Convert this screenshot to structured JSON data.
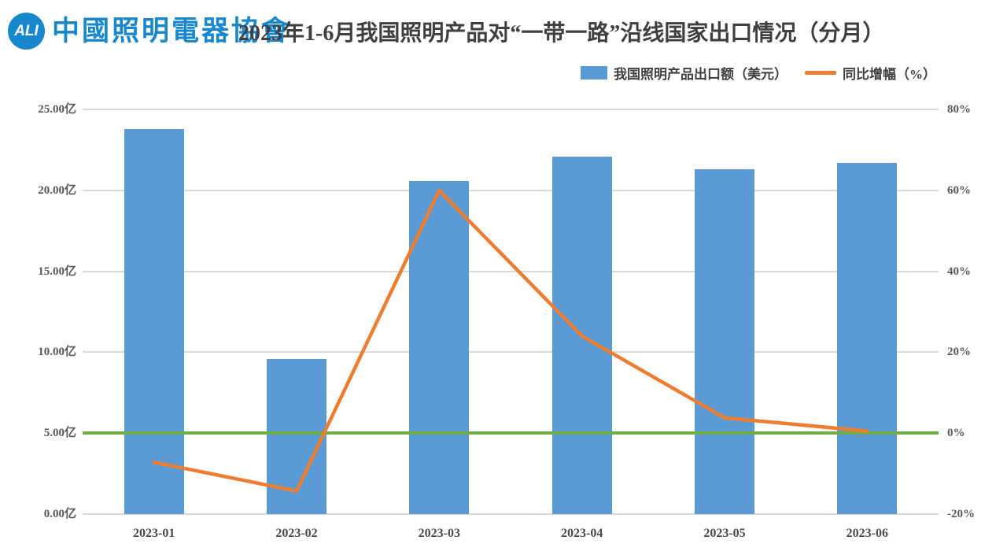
{
  "header": {
    "logo": {
      "mark": "ALI",
      "name": "中國照明電器協會",
      "color": "#1787CE"
    },
    "title": "2023年1-6月我国照明产品对“一带一路”沿线国家出口情况（分月）"
  },
  "legend": {
    "bar_label": "我国照明产品出口额（美元）",
    "line_label": "同比增幅（%）"
  },
  "chart_data": {
    "type": "bar",
    "subtype": "bar+line combo, dual axis",
    "title": "2023年1-6月我国照明产品对“一带一路”沿线国家出口情况（分月）",
    "categories": [
      "2023-01",
      "2023-02",
      "2023-03",
      "2023-04",
      "2023-05",
      "2023-06"
    ],
    "series": [
      {
        "name": "我国照明产品出口额（美元）",
        "type": "bar",
        "axis": "left",
        "unit": "亿",
        "color": "#5B9BD5",
        "values": [
          23.8,
          9.6,
          20.6,
          22.1,
          21.3,
          21.7
        ]
      },
      {
        "name": "同比增幅（%）",
        "type": "line",
        "axis": "right",
        "unit": "%",
        "color": "#ED7D31",
        "values": [
          -7.2,
          -14.3,
          60.0,
          24.0,
          3.8,
          0.5
        ]
      }
    ],
    "left_axis": {
      "min": 0,
      "max": 25,
      "tick_values": [
        0,
        5,
        10,
        15,
        20,
        25
      ],
      "ticks": [
        "0.00亿",
        "5.00亿",
        "10.00亿",
        "15.00亿",
        "20.00亿",
        "25.00亿"
      ]
    },
    "right_axis": {
      "min": -20,
      "max": 80,
      "tick_values": [
        -20,
        0,
        20,
        40,
        60,
        80
      ],
      "ticks": [
        "-20%",
        "0%",
        "20%",
        "40%",
        "60%",
        "80%"
      ]
    },
    "zero_line": {
      "axis": "right",
      "value": 0,
      "color": "#70AD47"
    },
    "grid": true,
    "grid_color": "#D9D9D9",
    "legend_position": "top-right"
  }
}
